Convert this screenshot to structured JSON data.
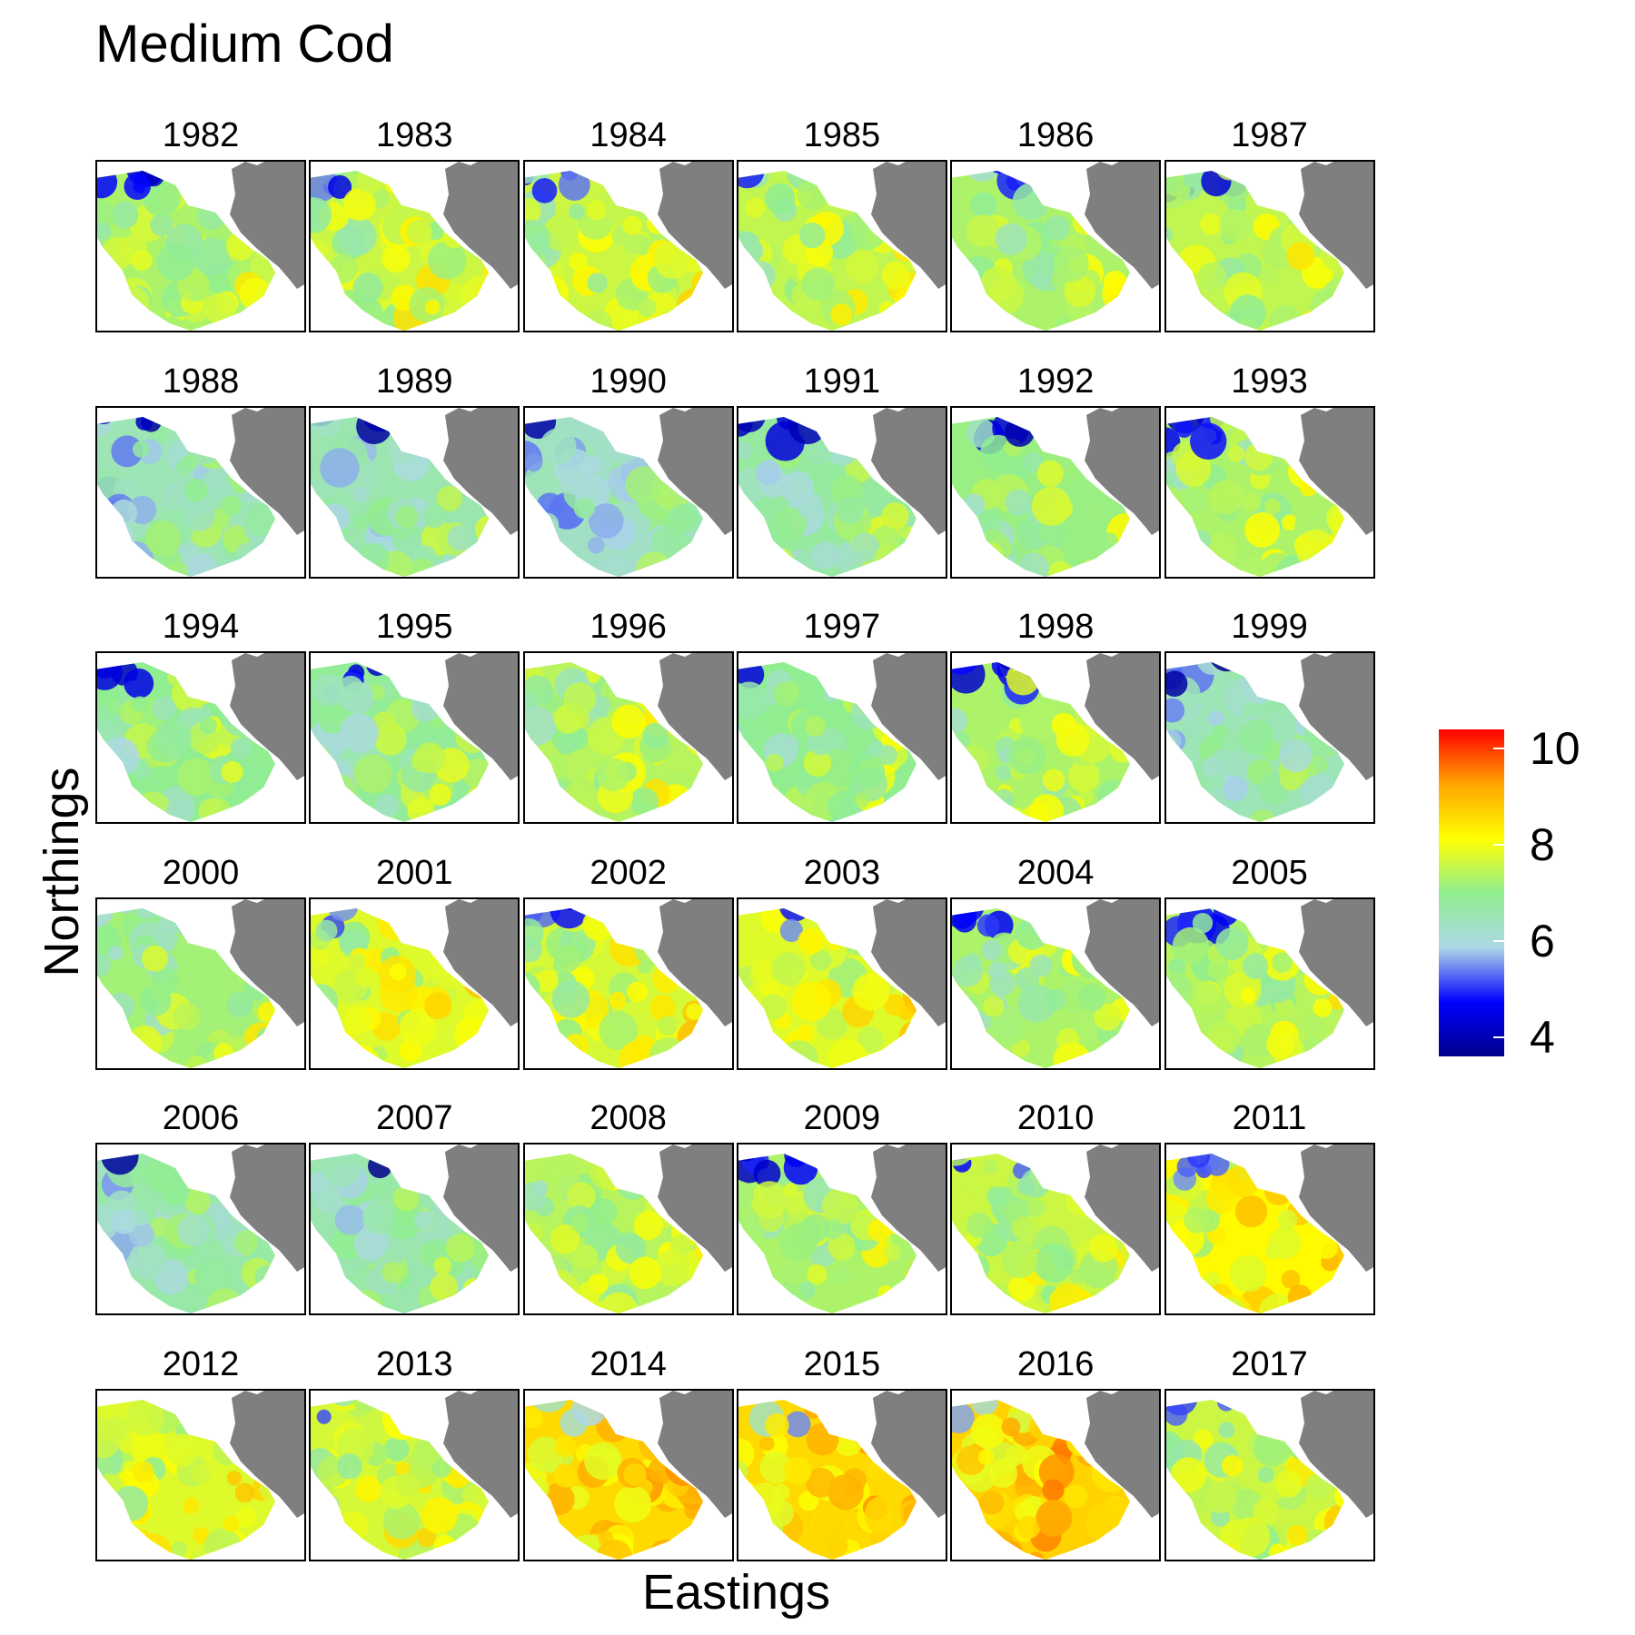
{
  "chart_data": {
    "type": "heatmap",
    "title": "Medium Cod",
    "xlabel": "Eastings",
    "ylabel": "Northings",
    "facets": [
      "1982",
      "1983",
      "1984",
      "1985",
      "1986",
      "1987",
      "1988",
      "1989",
      "1990",
      "1991",
      "1992",
      "1993",
      "1994",
      "1995",
      "1996",
      "1997",
      "1998",
      "1999",
      "2000",
      "2001",
      "2002",
      "2003",
      "2004",
      "2005",
      "2006",
      "2007",
      "2008",
      "2009",
      "2010",
      "2011",
      "2012",
      "2013",
      "2014",
      "2015",
      "2016",
      "2017"
    ],
    "facet_layout": {
      "rows": 6,
      "cols": 6
    },
    "panel_mean_values": [
      7.3,
      7.6,
      7.6,
      7.5,
      7.3,
      7.5,
      6.5,
      6.6,
      6.3,
      6.8,
      7.1,
      7.3,
      7.0,
      6.9,
      7.4,
      7.0,
      7.3,
      6.5,
      7.2,
      7.8,
      7.7,
      7.8,
      7.3,
      7.4,
      6.7,
      6.6,
      7.4,
      7.3,
      7.6,
      8.2,
      7.8,
      7.7,
      8.6,
      8.6,
      8.7,
      7.6
    ],
    "land_color": "#7f7f7f",
    "colorbar": {
      "range": [
        3.6,
        10.4
      ],
      "ticks": [
        4,
        6,
        8,
        10
      ],
      "tick_labels": [
        "4",
        "6",
        "8",
        "10"
      ],
      "colors": [
        "#00008b",
        "#0000ff",
        "#add8e6",
        "#90ee90",
        "#ffff00",
        "#ffa500",
        "#ff0000"
      ]
    }
  }
}
